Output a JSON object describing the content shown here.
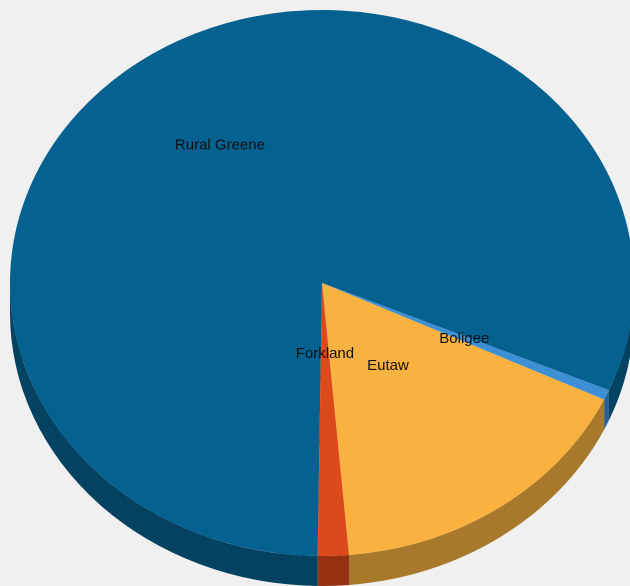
{
  "chart_data": {
    "type": "pie",
    "style": "3d",
    "legend": "none",
    "slices": [
      {
        "label": "Rural Greene",
        "value": 81.2,
        "color": "#05618f"
      },
      {
        "label": "Boligee",
        "value": 0.6,
        "color": "#3d8fd6"
      },
      {
        "label": "Eutaw",
        "value": 16.6,
        "color": "#f9b23f"
      },
      {
        "label": "Forkland",
        "value": 1.6,
        "color": "#dc4a1b"
      }
    ]
  }
}
